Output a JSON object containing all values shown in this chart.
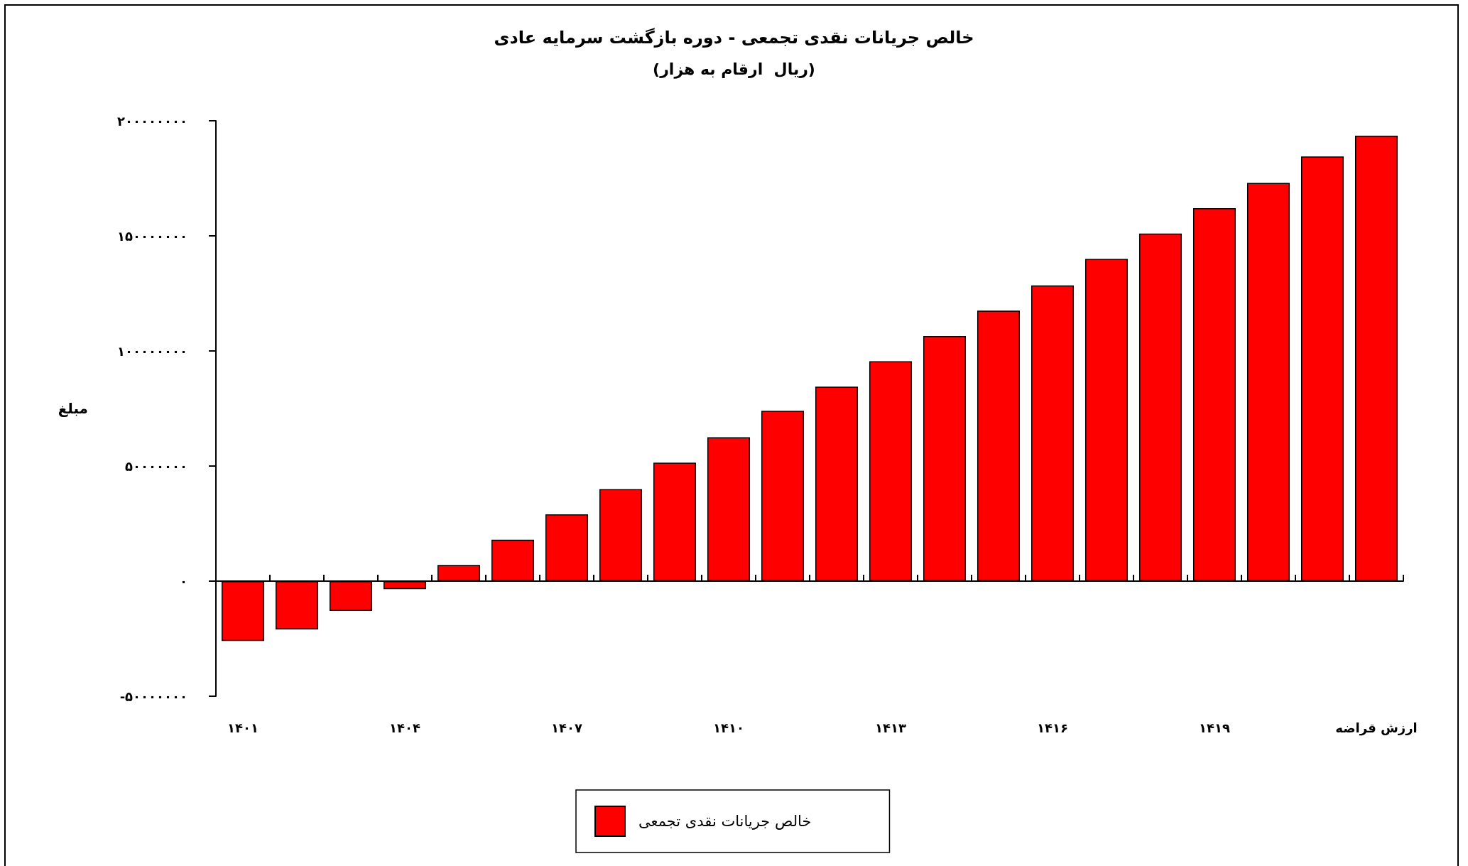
{
  "chart_data": {
    "type": "bar",
    "title": "خالص جریانات نقدی تجمعی - دوره بازگشت سرمایه عادی",
    "subtitle": "(ریال  ارقام به هزار)",
    "ylabel": "مبلغ",
    "categories": [
      "۱۴۰۱",
      null,
      null,
      "۱۴۰۴",
      null,
      null,
      "۱۴۰۷",
      null,
      null,
      "۱۴۱۰",
      null,
      null,
      "۱۴۱۳",
      null,
      null,
      "۱۴۱۶",
      null,
      null,
      "۱۴۱۹",
      null,
      null,
      "ارزش قراضه"
    ],
    "series": [
      {
        "name": "خالص جریانات نقدی تجمعی",
        "color": "#ff0000",
        "values": [
          -26000000,
          -21000000,
          -13000000,
          -3500000,
          7000000,
          18000000,
          29000000,
          40000000,
          51500000,
          62500000,
          74000000,
          84500000,
          95500000,
          106500000,
          117500000,
          128500000,
          140000000,
          151000000,
          162000000,
          173000000,
          184500000,
          193500000
        ]
      }
    ],
    "ylim": [
      -50000000,
      200000000
    ],
    "yticks": [
      {
        "value": -50000000,
        "label": "-۵۰۰۰۰۰۰۰"
      },
      {
        "value": 0,
        "label": "۰"
      },
      {
        "value": 50000000,
        "label": "۵۰۰۰۰۰۰۰"
      },
      {
        "value": 100000000,
        "label": "۱۰۰۰۰۰۰۰۰"
      },
      {
        "value": 150000000,
        "label": "۱۵۰۰۰۰۰۰۰"
      },
      {
        "value": 200000000,
        "label": "۲۰۰۰۰۰۰۰۰"
      }
    ],
    "legend": "bottom"
  }
}
